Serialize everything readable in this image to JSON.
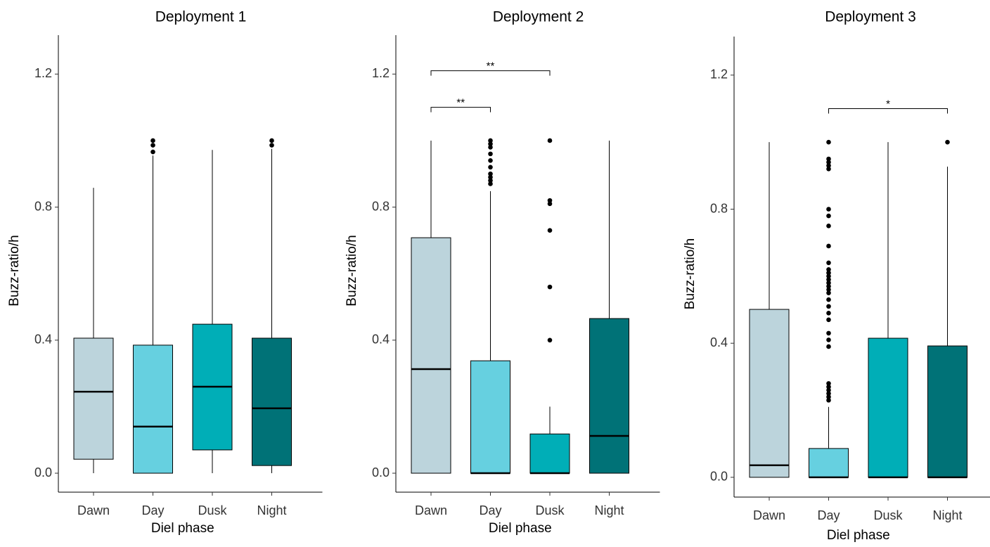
{
  "chart_data": [
    {
      "type": "box",
      "title": "Deployment 1",
      "x_label": "Diel phase",
      "y_label": "Buzz-ratio/h",
      "categories": [
        "Dawn",
        "Day",
        "Dusk",
        "Night"
      ],
      "ylim": [
        -0.057,
        1.317
      ],
      "yticks": [
        {
          "value": 0,
          "label": "0.0"
        },
        0.4,
        0.8,
        1.2
      ],
      "boxes": [
        {
          "color": "#bcd4dc",
          "low": 0,
          "q1": 0.042,
          "median": 0.245,
          "q3": 0.406,
          "high": 0.858,
          "outliers": []
        },
        {
          "color": "#66d0e0",
          "low": 0,
          "q1": 0,
          "median": 0.14,
          "q3": 0.385,
          "high": 0.955,
          "outliers": [
            0.966,
            0.986,
            1.0
          ]
        },
        {
          "color": "#00aeb7",
          "low": 0,
          "q1": 0.07,
          "median": 0.26,
          "q3": 0.448,
          "high": 0.972,
          "outliers": []
        },
        {
          "color": "#007277",
          "low": 0,
          "q1": 0.023,
          "median": 0.195,
          "q3": 0.406,
          "high": 0.975,
          "outliers": [
            0.986,
            1.0
          ]
        }
      ],
      "brackets": []
    },
    {
      "type": "box",
      "title": "Deployment 2",
      "x_label": "Diel phase",
      "y_label": "Buzz-ratio/h",
      "categories": [
        "Dawn",
        "Day",
        "Dusk",
        "Night"
      ],
      "ylim": [
        -0.057,
        1.317
      ],
      "yticks": [
        {
          "value": 0,
          "label": "0.0"
        },
        0.4,
        0.8,
        1.2
      ],
      "boxes": [
        {
          "color": "#bcd4dc",
          "low": 0,
          "q1": 0,
          "median": 0.313,
          "q3": 0.708,
          "high": 1.0,
          "outliers": []
        },
        {
          "color": "#66d0e0",
          "low": 0,
          "q1": 0,
          "median": 0,
          "q3": 0.338,
          "high": 0.848,
          "outliers": [
            0.87,
            0.88,
            0.89,
            0.9,
            0.92,
            0.94,
            0.96,
            0.98,
            0.99,
            1.0
          ]
        },
        {
          "color": "#00aeb7",
          "low": 0,
          "q1": 0,
          "median": 0,
          "q3": 0.118,
          "high": 0.2,
          "outliers": [
            0.4,
            0.56,
            0.73,
            0.81,
            0.82,
            1.0
          ]
        },
        {
          "color": "#007277",
          "low": 0,
          "q1": 0,
          "median": 0.112,
          "q3": 0.465,
          "high": 1.0,
          "outliers": []
        }
      ],
      "brackets": [
        {
          "from": 0,
          "to": 2,
          "y": 1.21,
          "label": "**"
        },
        {
          "from": 0,
          "to": 1,
          "y": 1.1,
          "label": "**"
        }
      ]
    },
    {
      "type": "box",
      "title": "Deployment 3",
      "x_label": "Diel phase",
      "y_label": "Buzz-ratio/h",
      "categories": [
        "Dawn",
        "Day",
        "Dusk",
        "Night"
      ],
      "ylim": [
        -0.059,
        1.315
      ],
      "yticks": [
        {
          "value": 0,
          "label": "0.0"
        },
        0.4,
        0.8,
        1.2
      ],
      "boxes": [
        {
          "color": "#bcd4dc",
          "low": 0,
          "q1": 0,
          "median": 0.036,
          "q3": 0.501,
          "high": 1.0,
          "outliers": []
        },
        {
          "color": "#66d0e0",
          "low": 0,
          "q1": 0,
          "median": 0,
          "q3": 0.086,
          "high": 0.21,
          "outliers": [
            0.23,
            0.24,
            0.25,
            0.26,
            0.27,
            0.28,
            0.39,
            0.41,
            0.43,
            0.47,
            0.49,
            0.51,
            0.53,
            0.55,
            0.56,
            0.57,
            0.58,
            0.59,
            0.6,
            0.61,
            0.62,
            0.64,
            0.69,
            0.75,
            0.78,
            0.8,
            0.92,
            0.93,
            0.94,
            0.95,
            1.0
          ]
        },
        {
          "color": "#00aeb7",
          "low": 0,
          "q1": 0,
          "median": 0,
          "q3": 0.415,
          "high": 1.0,
          "outliers": []
        },
        {
          "color": "#007277",
          "low": 0,
          "q1": 0,
          "median": 0,
          "q3": 0.392,
          "high": 0.927,
          "outliers": [
            1.0
          ]
        }
      ],
      "brackets": [
        {
          "from": 1,
          "to": 3,
          "y": 1.1,
          "label": "*"
        }
      ]
    }
  ]
}
